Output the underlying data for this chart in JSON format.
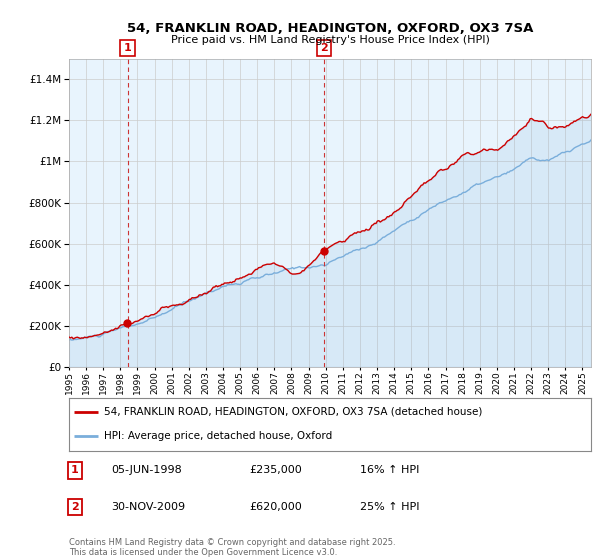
{
  "title_line1": "54, FRANKLIN ROAD, HEADINGTON, OXFORD, OX3 7SA",
  "title_line2": "Price paid vs. HM Land Registry's House Price Index (HPI)",
  "legend_label1": "54, FRANKLIN ROAD, HEADINGTON, OXFORD, OX3 7SA (detached house)",
  "legend_label2": "HPI: Average price, detached house, Oxford",
  "transaction1_date": "05-JUN-1998",
  "transaction1_price": "£235,000",
  "transaction1_hpi": "16% ↑ HPI",
  "transaction1_year": 1998.43,
  "transaction1_value": 235000,
  "transaction2_date": "30-NOV-2009",
  "transaction2_price": "£620,000",
  "transaction2_hpi": "25% ↑ HPI",
  "transaction2_year": 2009.91,
  "transaction2_value": 620000,
  "color_property": "#cc0000",
  "color_hpi": "#7aaedb",
  "color_fill": "#ddeeff",
  "color_transaction_marker": "#cc0000",
  "background_color": "#ffffff",
  "grid_color": "#cccccc",
  "ylim": [
    0,
    1500000
  ],
  "xlim_start": 1995,
  "xlim_end": 2025.5,
  "footnote": "Contains HM Land Registry data © Crown copyright and database right 2025.\nThis data is licensed under the Open Government Licence v3.0."
}
